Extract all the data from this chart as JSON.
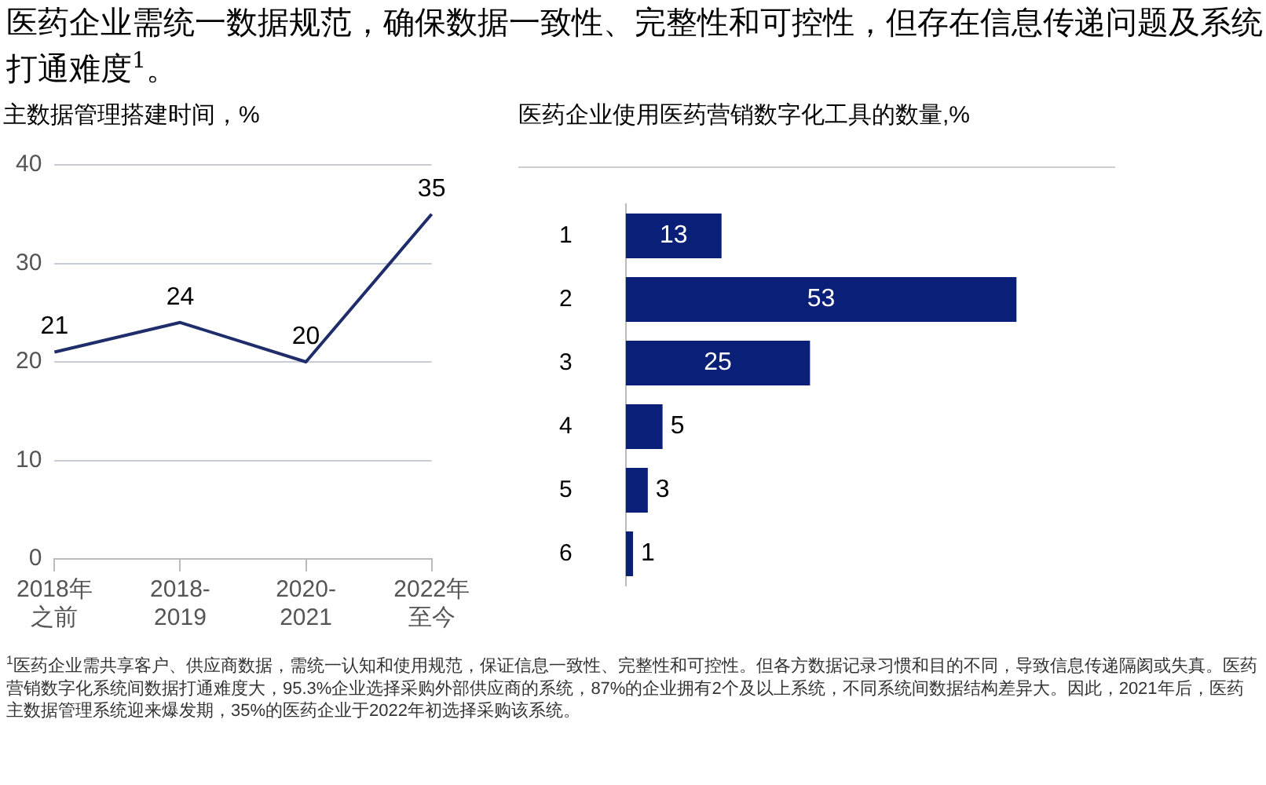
{
  "chart_data": [
    {
      "type": "line",
      "title": "医药企业需统一数据规范，确保数据一致性、完整性和可控性，但存在信息传递问题及系统打通难度$^{1}$。",
      "subtitle": "主数据管理搭建时间，%",
      "categories": [
        "2018年之前",
        "2018-2019",
        "2020-2021",
        "2022年至今"
      ],
      "values": [
        21,
        24,
        20,
        35
      ],
      "color": "#1f2d6b",
      "ylim": [
        0,
        40
      ],
      "yticks": [
        0,
        10,
        20,
        30,
        40
      ],
      "grid": "y",
      "data_labels": true,
      "marker": "none",
      "line_style": "solid",
      "legend": false,
      "annotations": [
        "$^{1}$医药企业需共享客户、供应商数据，需统一认知和使用规范，保证信息一致性、完整性和可控性。但各方数据记录习惯和目的不同，导致信息传递隔阂或失真。医药营销数字化系统间数据打通难度大，95.3%企业选择采购外部供应商的系统，87%的企业拥有2个及以上系统，不同系统间数据结构差异大。因此，2021年后，医药主数据管理系统迎来爆发期，35%的医药企业于2022年初选择采购该系统。"
      ]
    },
    {
      "type": "bar",
      "orientation": "horizontal",
      "title": "医药企业使用医药营销数字化工具的数量,%",
      "categories": [
        "1",
        "2",
        "3",
        "4",
        "5",
        "6"
      ],
      "values": [
        13,
        53,
        25,
        5,
        3,
        1
      ],
      "color": "#0a1f78",
      "data_labels": true,
      "legend": false
    }
  ]
}
